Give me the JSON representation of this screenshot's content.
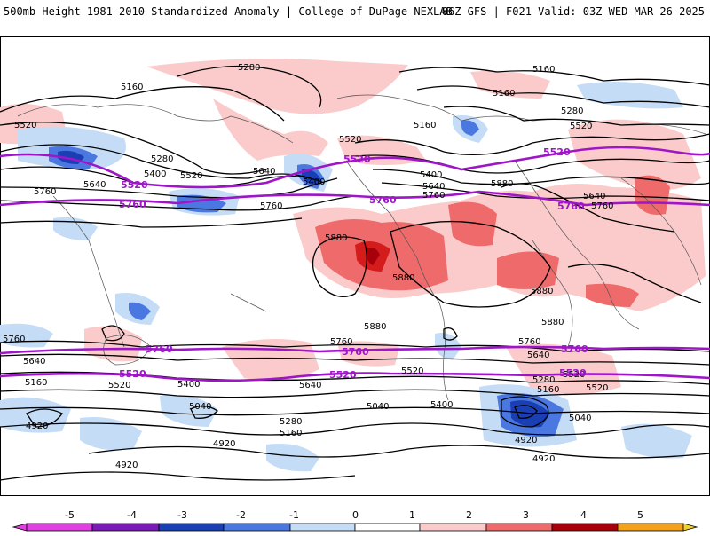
{
  "header": {
    "left": "500mb Height 1981-2010 Standardized Anomaly | College of DuPage NEXLAB",
    "right": "06Z GFS | F021 Valid: 03Z WED MAR 26 2025"
  },
  "colors": {
    "key_contour": "#9e16c8",
    "contour": "#000000",
    "neg5": "#e040e0",
    "neg4": "#7a1ab8",
    "neg3": "#1a3fb5",
    "neg2": "#4a78e0",
    "neg1": "#c5dcf7",
    "pos1": "#fbcbcb",
    "pos2": "#ef6a6a",
    "pos3": "#d41c1c",
    "pos4": "#a8000a",
    "pos5": "#f2a21b"
  },
  "map": {
    "contour_labels": [
      {
        "text": "5280"
      },
      {
        "text": "5160"
      },
      {
        "text": "5160"
      },
      {
        "text": "5160"
      },
      {
        "text": "5160"
      },
      {
        "text": "5280"
      },
      {
        "text": "5520"
      },
      {
        "text": "5520"
      },
      {
        "text": "5280"
      },
      {
        "text": "5400"
      },
      {
        "text": "5520"
      },
      {
        "text": "5640"
      },
      {
        "text": "5640"
      },
      {
        "text": "5400"
      },
      {
        "text": "5760"
      },
      {
        "text": "5760"
      },
      {
        "text": "5520"
      },
      {
        "text": "5400"
      },
      {
        "text": "5640"
      },
      {
        "text": "5760"
      },
      {
        "text": "5880"
      },
      {
        "text": "5640"
      },
      {
        "text": "5760"
      },
      {
        "text": "5880"
      },
      {
        "text": "5880"
      },
      {
        "text": "5880"
      },
      {
        "text": "5880"
      },
      {
        "text": "5880"
      },
      {
        "text": "5760"
      },
      {
        "text": "5760"
      },
      {
        "text": "5640"
      },
      {
        "text": "5520"
      },
      {
        "text": "5160"
      },
      {
        "text": "5400"
      },
      {
        "text": "5640"
      },
      {
        "text": "5520"
      },
      {
        "text": "5760"
      },
      {
        "text": "5520"
      },
      {
        "text": "5640"
      },
      {
        "text": "5280"
      },
      {
        "text": "5160"
      },
      {
        "text": "5400"
      },
      {
        "text": "5520"
      },
      {
        "text": "5040"
      },
      {
        "text": "5040"
      },
      {
        "text": "5040"
      },
      {
        "text": "5280"
      },
      {
        "text": "5160"
      },
      {
        "text": "4920"
      },
      {
        "text": "4920"
      },
      {
        "text": "4920"
      },
      {
        "text": "4920"
      },
      {
        "text": "4920"
      }
    ],
    "key_labels": [
      {
        "text": "5520"
      },
      {
        "text": "5520"
      },
      {
        "text": "5520"
      },
      {
        "text": "5760"
      },
      {
        "text": "5760"
      },
      {
        "text": "5760"
      },
      {
        "text": "5760"
      },
      {
        "text": "5760"
      },
      {
        "text": "5760"
      },
      {
        "text": "5520"
      },
      {
        "text": "5520"
      },
      {
        "text": "5520"
      }
    ]
  },
  "colorbar": {
    "ticks": [
      "-5",
      "-4",
      "-3",
      "-2",
      "-1",
      "0",
      "1",
      "2",
      "3",
      "4",
      "5"
    ]
  }
}
